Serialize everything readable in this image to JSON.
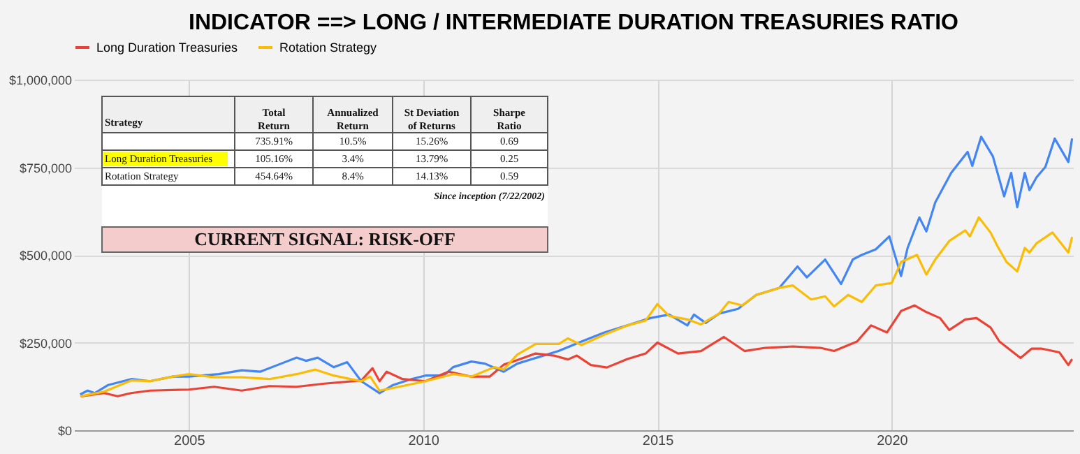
{
  "chart_data": {
    "type": "line",
    "title": "INDICATOR ==> LONG / INTERMEDIATE DURATION TREASURIES RATIO",
    "xlim": [
      2002.55,
      2023.87
    ],
    "xticks": [
      2005,
      2010,
      2015,
      2020
    ],
    "ylim": [
      0,
      1000000
    ],
    "yticks": [
      {
        "value": 0,
        "label": "$0"
      },
      {
        "value": 250000,
        "label": "$250,000"
      },
      {
        "value": 500000,
        "label": "$500,000"
      },
      {
        "value": 750000,
        "label": "$750,000"
      },
      {
        "value": 1000000,
        "label": "$1,000,000"
      }
    ],
    "grid": true,
    "legend": "top",
    "marker": "none",
    "line_style": "solid",
    "series": [
      {
        "color": "#4285f4",
        "x": [
          2002.68,
          2002.84,
          2002.99,
          2003.28,
          2003.77,
          2004.17,
          2004.66,
          2005.0,
          2005.64,
          2006.13,
          2006.52,
          2006.91,
          2007.3,
          2007.5,
          2007.75,
          2008.09,
          2008.38,
          2008.68,
          2009.07,
          2009.36,
          2009.75,
          2010.05,
          2010.44,
          2010.64,
          2011.03,
          2011.32,
          2011.72,
          2012.01,
          2012.89,
          2013.38,
          2013.87,
          2014.36,
          2014.85,
          2015.25,
          2015.64,
          2015.78,
          2016.03,
          2016.32,
          2016.72,
          2017.11,
          2017.6,
          2017.99,
          2018.19,
          2018.58,
          2018.92,
          2019.17,
          2019.36,
          2019.66,
          2019.95,
          2020.2,
          2020.34,
          2020.59,
          2020.74,
          2020.93,
          2021.27,
          2021.62,
          2021.72,
          2021.91,
          2022.16,
          2022.4,
          2022.55,
          2022.68,
          2022.84,
          2022.94,
          2023.09,
          2023.28,
          2023.48,
          2023.77,
          2023.85
        ],
        "values": [
          102000,
          113000,
          106000,
          129000,
          146000,
          140000,
          153000,
          153000,
          160000,
          171000,
          167000,
          187000,
          207000,
          198000,
          207000,
          180000,
          194000,
          140000,
          106000,
          129000,
          146000,
          156000,
          156000,
          180000,
          196000,
          190000,
          167000,
          190000,
          226000,
          253000,
          279000,
          299000,
          320000,
          330000,
          299000,
          330000,
          306000,
          333000,
          346000,
          386000,
          406000,
          467000,
          436000,
          487000,
          417000,
          487000,
          500000,
          516000,
          553000,
          440000,
          520000,
          607000,
          567000,
          650000,
          734000,
          794000,
          754000,
          837000,
          781000,
          667000,
          734000,
          636000,
          734000,
          685000,
          721000,
          751000,
          832000,
          765000,
          832000
        ]
      },
      {
        "name": "Long Duration Treasuries",
        "color": "#ea4335",
        "x": [
          2002.7,
          2003.19,
          2003.48,
          2003.77,
          2004.17,
          2005.0,
          2005.54,
          2006.13,
          2006.72,
          2007.3,
          2007.89,
          2008.68,
          2008.92,
          2009.07,
          2009.22,
          2009.56,
          2010.05,
          2010.54,
          2011.03,
          2011.42,
          2011.72,
          2012.01,
          2012.4,
          2012.79,
          2013.09,
          2013.28,
          2013.58,
          2013.92,
          2014.36,
          2014.75,
          2015.0,
          2015.44,
          2015.93,
          2016.42,
          2016.86,
          2017.3,
          2017.89,
          2018.48,
          2018.77,
          2019.26,
          2019.56,
          2019.9,
          2020.2,
          2020.49,
          2020.74,
          2021.03,
          2021.23,
          2021.57,
          2021.81,
          2022.11,
          2022.3,
          2022.75,
          2022.99,
          2023.19,
          2023.58,
          2023.77,
          2023.85
        ],
        "values": [
          97000,
          106000,
          97000,
          106000,
          113000,
          116000,
          124000,
          113000,
          126000,
          124000,
          133000,
          142000,
          177000,
          140000,
          167000,
          146000,
          140000,
          167000,
          153000,
          153000,
          187000,
          200000,
          219000,
          213000,
          202000,
          213000,
          186000,
          179000,
          203000,
          219000,
          250000,
          219000,
          226000,
          266000,
          226000,
          235000,
          239000,
          235000,
          226000,
          253000,
          299000,
          279000,
          340000,
          356000,
          337000,
          320000,
          286000,
          316000,
          320000,
          293000,
          253000,
          206000,
          233000,
          233000,
          222000,
          186000,
          203000
        ]
      },
      {
        "name": "Rotation Strategy",
        "color": "#fbbc04",
        "x": [
          2002.68,
          2003.19,
          2003.77,
          2004.17,
          2004.66,
          2005.0,
          2005.54,
          2006.13,
          2006.72,
          2007.3,
          2007.7,
          2008.09,
          2008.68,
          2008.87,
          2009.07,
          2009.56,
          2010.05,
          2010.64,
          2011.03,
          2011.52,
          2011.72,
          2012.01,
          2012.4,
          2012.89,
          2013.09,
          2013.38,
          2013.87,
          2014.36,
          2014.75,
          2015.0,
          2015.25,
          2015.64,
          2015.93,
          2016.32,
          2016.52,
          2016.81,
          2017.11,
          2017.6,
          2017.89,
          2018.28,
          2018.58,
          2018.77,
          2019.07,
          2019.36,
          2019.66,
          2020.0,
          2020.2,
          2020.54,
          2020.74,
          2020.93,
          2021.23,
          2021.57,
          2021.67,
          2021.86,
          2022.11,
          2022.25,
          2022.45,
          2022.68,
          2022.84,
          2022.94,
          2023.09,
          2023.43,
          2023.77,
          2023.85
        ],
        "values": [
          97000,
          110000,
          142000,
          140000,
          153000,
          160000,
          151000,
          151000,
          146000,
          160000,
          173000,
          156000,
          140000,
          153000,
          113000,
          126000,
          140000,
          160000,
          153000,
          180000,
          173000,
          216000,
          246000,
          246000,
          262000,
          243000,
          273000,
          299000,
          313000,
          360000,
          326000,
          316000,
          302000,
          333000,
          366000,
          356000,
          386000,
          406000,
          413000,
          373000,
          382000,
          353000,
          386000,
          366000,
          413000,
          420000,
          480000,
          500000,
          444000,
          487000,
          540000,
          570000,
          553000,
          607000,
          564000,
          527000,
          480000,
          453000,
          520000,
          507000,
          533000,
          564000,
          507000,
          551000
        ]
      }
    ],
    "annotations": [
      "Strategy",
      "Total\nReturn",
      "Annualized\nReturn",
      "St Deviation\nof Returns",
      "Sharpe\nRatio",
      "735.91%",
      "10.5%",
      "15.26%",
      "0.69",
      "Long Duration Treasuries",
      "105.16%",
      "3.4%",
      "13.79%",
      "0.25",
      "Rotation Strategy",
      "454.64%",
      "8.4%",
      "14.13%",
      "0.59",
      "Since inception (7/22/2002)",
      "CURRENT SIGNAL: RISK-OFF"
    ]
  }
}
